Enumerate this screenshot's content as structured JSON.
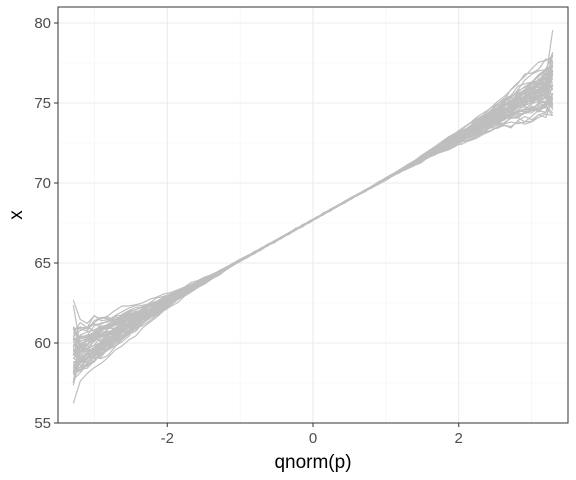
{
  "chart_data": {
    "type": "line",
    "title": "",
    "xlabel": "qnorm(p)",
    "ylabel": "x",
    "xlim": [
      -3.5,
      3.5
    ],
    "ylim": [
      55,
      81
    ],
    "x_ticks": [
      -2,
      0,
      2
    ],
    "x_tick_labels": [
      "-2",
      "0",
      "2"
    ],
    "y_ticks": [
      55,
      60,
      65,
      70,
      75,
      80
    ],
    "y_tick_labels": [
      "55",
      "60",
      "65",
      "70",
      "75",
      "80"
    ],
    "grid": true,
    "legend": "none",
    "line_color": "#bebebe",
    "description_of_series": "many overlapping grey simulated quantile lines",
    "reference_line": {
      "intercept": 67.7,
      "slope": 2.55
    },
    "x_range": [
      -3.29,
      3.29
    ],
    "n_series": 60,
    "spread_at_ends": 1.6,
    "spread_at_center": 0.08
  }
}
